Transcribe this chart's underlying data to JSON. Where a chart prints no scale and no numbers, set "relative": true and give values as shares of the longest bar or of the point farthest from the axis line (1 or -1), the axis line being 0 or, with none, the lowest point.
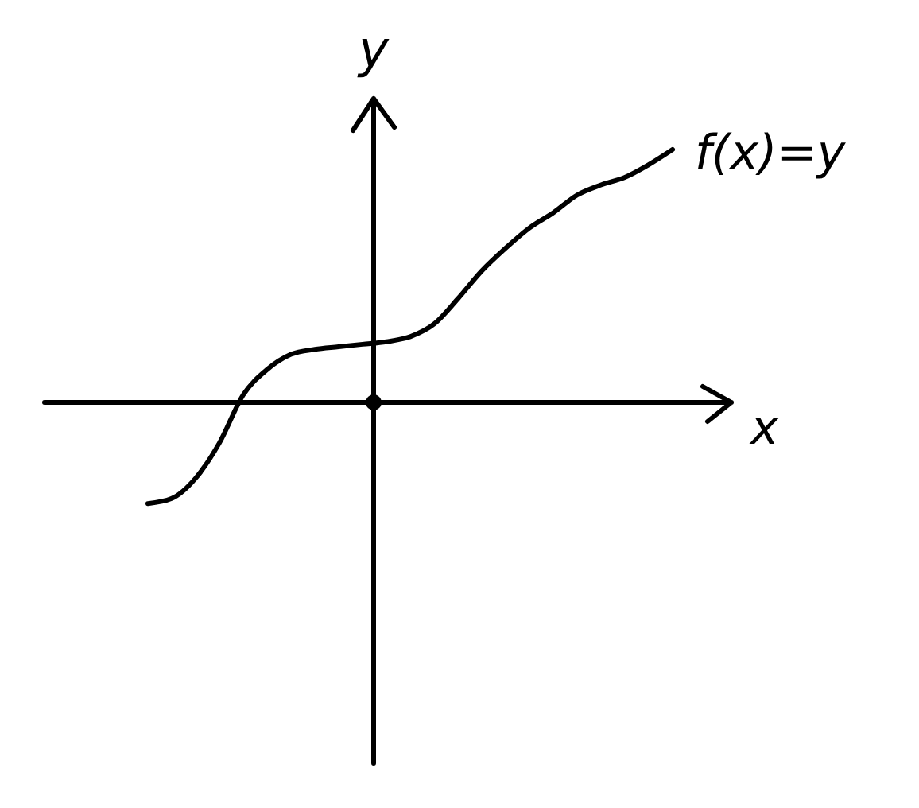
{
  "chart_data": {
    "type": "line",
    "xlabel": "x",
    "ylabel": "y",
    "relative": true,
    "categories": [
      null,
      null,
      null,
      null,
      null,
      null,
      null,
      null,
      null,
      null,
      null,
      null,
      null,
      null,
      null,
      null,
      null,
      null,
      null,
      null,
      null,
      null,
      null
    ],
    "series": [
      {
        "name": "f(x)=y",
        "color": "#000000",
        "values": [
          -0.4,
          -0.38,
          -0.3,
          -0.16,
          0.03,
          0.13,
          0.19,
          0.21,
          0.22,
          0.23,
          0.24,
          0.26,
          0.31,
          0.41,
          0.52,
          0.61,
          0.69,
          0.75,
          0.82,
          0.86,
          0.89,
          0.94,
          1
        ]
      }
    ]
  }
}
